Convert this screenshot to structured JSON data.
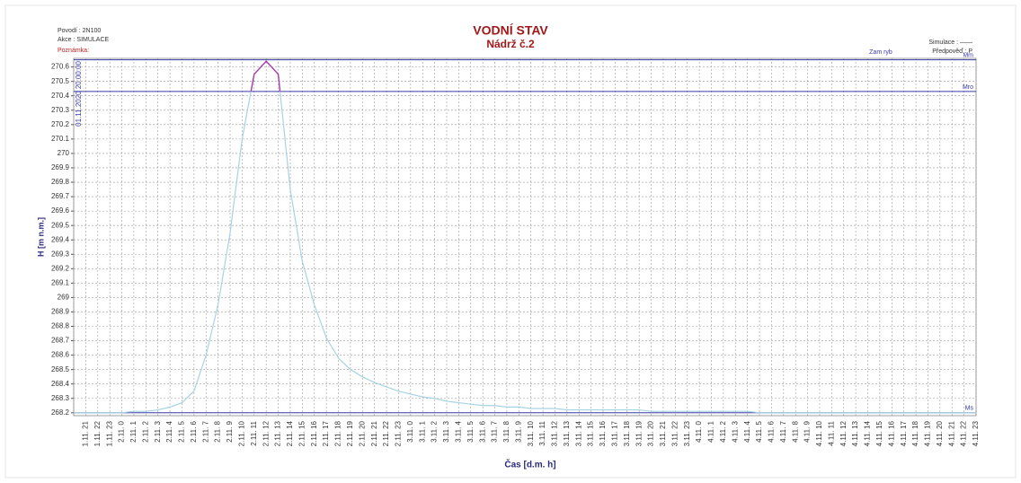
{
  "chart_data": {
    "type": "line",
    "title": "VODNÍ STAV",
    "subtitle": "Nádrž č.2",
    "info": [
      "Povodí : 2N100",
      "Akce : SIMULACE"
    ],
    "note": "Poznámka:",
    "legend": [
      "Simulace : ——",
      "Předpověď : P"
    ],
    "start_label": "01.11.2020 20:00:00",
    "annotation": "Zam ryb",
    "x_label": "Čas  [d.m. h]",
    "y_label": "H [m n.m.]",
    "categories": [
      null,
      "1.11. 21",
      "1.11. 22",
      "1.11. 23",
      "2.11. 0",
      "2.11. 1",
      "2.11. 2",
      "2.11. 3",
      "2.11. 4",
      "2.11. 5",
      "2.11. 6",
      "2.11. 7",
      "2.11. 8",
      "2.11. 9",
      "2.11. 10",
      "2.11. 11",
      "2.11. 12",
      "2.11. 13",
      "2.11. 14",
      "2.11. 15",
      "2.11. 16",
      "2.11. 17",
      "2.11. 18",
      "2.11. 19",
      "2.11. 20",
      "2.11. 21",
      "2.11. 22",
      "2.11. 23",
      "3.11. 0",
      "3.11. 1",
      "3.11. 2",
      "3.11. 3",
      "3.11. 4",
      "3.11. 5",
      "3.11. 6",
      "3.11. 7",
      "3.11. 8",
      "3.11. 9",
      "3.11. 10",
      "3.11. 11",
      "3.11. 12",
      "3.11. 13",
      "3.11. 14",
      "3.11. 15",
      "3.11. 16",
      "3.11. 17",
      "3.11. 18",
      "3.11. 19",
      "3.11. 20",
      "3.11. 21",
      "3.11. 22",
      "3.11. 23",
      "4.11. 0",
      "4.11. 1",
      "4.11. 2",
      "4.11. 3",
      "4.11. 4",
      "4.11. 5",
      "4.11. 6",
      "4.11. 7",
      "4.11. 8",
      "4.11. 9",
      "4.11. 10",
      "4.11. 11",
      "4.11. 12",
      "4.11. 13",
      "4.11. 14",
      "4.11. 15",
      "4.11. 16",
      "4.11. 17",
      "4.11. 18",
      "4.11. 19",
      "4.11. 20",
      "4.11. 21",
      "4.11. 22",
      "4.11. 23"
    ],
    "series": [
      {
        "color": "#a6d3e3",
        "values": [
          268.2,
          268.2,
          268.2,
          268.2,
          268.2,
          268.21,
          268.21,
          268.22,
          268.24,
          268.27,
          268.35,
          268.6,
          268.95,
          269.45,
          270.1,
          270.55,
          270.64,
          270.55,
          269.75,
          269.25,
          268.95,
          268.72,
          268.58,
          268.5,
          268.45,
          268.41,
          268.38,
          268.35,
          268.33,
          268.31,
          268.3,
          268.28,
          268.27,
          268.26,
          268.25,
          268.25,
          268.24,
          268.24,
          268.23,
          268.23,
          268.23,
          268.22,
          268.22,
          268.22,
          268.22,
          268.22,
          268.22,
          268.22,
          268.21,
          268.21,
          268.21,
          268.21,
          268.21,
          268.21,
          268.21,
          268.21,
          268.21,
          268.2,
          268.2,
          268.2,
          268.2,
          268.2,
          268.2,
          268.2,
          268.2,
          268.2,
          268.2,
          268.2,
          268.2,
          268.2,
          268.2,
          268.2,
          268.2,
          268.2,
          268.2,
          268.2
        ]
      }
    ],
    "highlight_color": "#a83aae",
    "reference_color": "#3a3aa8",
    "reference_lines": [
      {
        "label": "Mm",
        "value": 270.65
      },
      {
        "label": "Mro",
        "value": 270.43
      },
      {
        "label": "Ms",
        "value": 268.2
      }
    ],
    "ylim": [
      268.18,
      270.66
    ],
    "yticks": [
      268.2,
      268.3,
      268.4,
      268.5,
      268.6,
      268.7,
      268.8,
      268.9,
      269,
      269.1,
      269.2,
      269.3,
      269.4,
      269.5,
      269.6,
      269.7,
      269.8,
      269.9,
      270,
      270.1,
      270.2,
      270.3,
      270.4,
      270.5,
      270.6
    ],
    "grid": true
  }
}
